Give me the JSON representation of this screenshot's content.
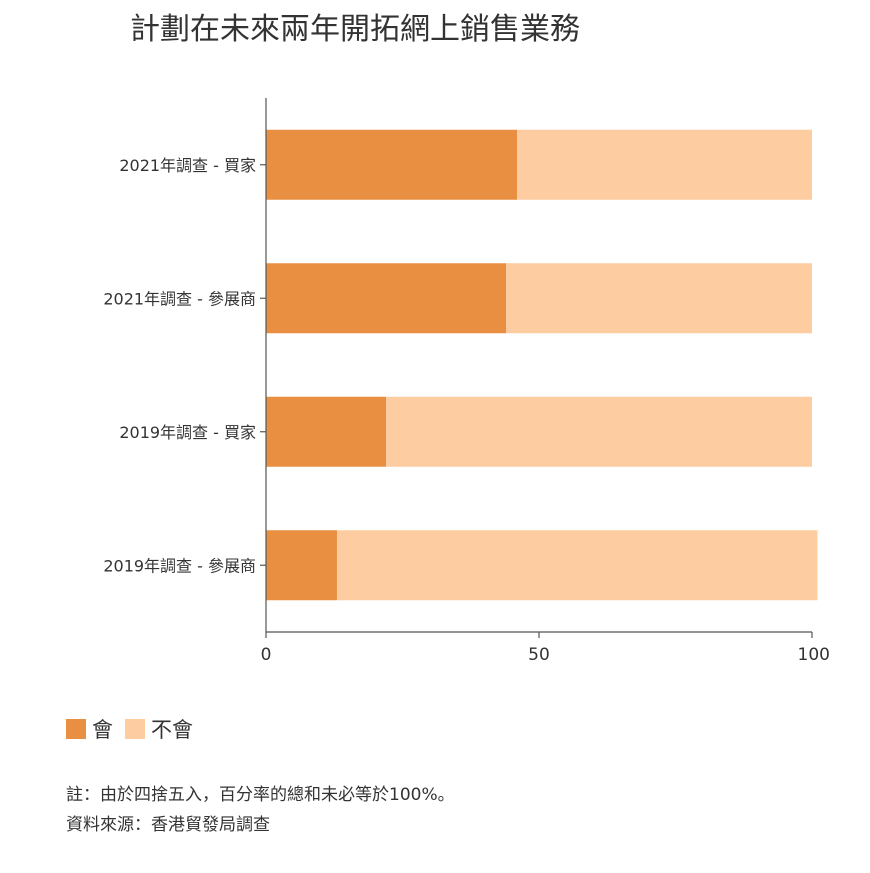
{
  "title": "計劃在未來兩年開拓網上銷售業務",
  "colors": {
    "will": "#E98F42",
    "will_not": "#FDCCA1",
    "axis": "#555555"
  },
  "chart_data": {
    "type": "bar",
    "orientation": "horizontal",
    "stacked": true,
    "categories": [
      "2021年調查 - 買家",
      "2021年調查 - 參展商",
      "2019年調查 - 買家",
      "2019年調查 - 參展商"
    ],
    "series": [
      {
        "name": "會",
        "values": [
          46,
          44,
          22,
          13
        ]
      },
      {
        "name": "不會",
        "values": [
          54,
          56,
          78,
          88
        ]
      }
    ],
    "xlim": [
      0,
      100
    ],
    "xticks": [
      0,
      50,
      100
    ],
    "grid": false,
    "legend_position": "bottom-left"
  },
  "notes": [
    "註：由於四捨五入，百分率的總和未必等於100%。",
    "資料來源：香港貿發局調查"
  ]
}
